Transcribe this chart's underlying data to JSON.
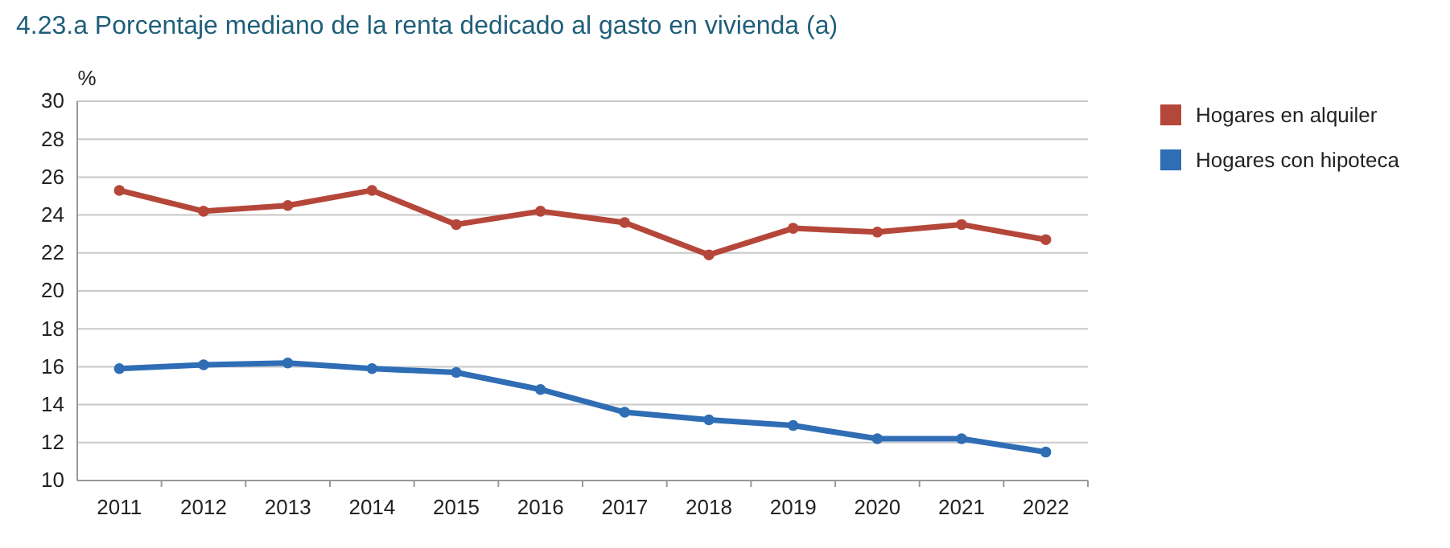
{
  "chart_data": {
    "type": "line",
    "title": "4.23.a  Porcentaje mediano de la renta dedicado al gasto en vivienda (a)",
    "ylabel": "%",
    "categories": [
      "2011",
      "2012",
      "2013",
      "2014",
      "2015",
      "2016",
      "2017",
      "2018",
      "2019",
      "2020",
      "2021",
      "2022"
    ],
    "series": [
      {
        "name": "Hogares en alquiler",
        "color": "#b5473a",
        "values": [
          25.3,
          24.2,
          24.5,
          25.3,
          23.5,
          24.2,
          23.6,
          21.9,
          23.3,
          23.1,
          23.5,
          22.7
        ]
      },
      {
        "name": "Hogares con hipoteca",
        "color": "#2f6db5",
        "values": [
          15.9,
          16.1,
          16.2,
          15.9,
          15.7,
          14.8,
          13.6,
          13.2,
          12.9,
          12.2,
          12.2,
          11.5
        ]
      }
    ],
    "ylim": [
      10,
      30
    ],
    "yticks": [
      10,
      12,
      14,
      16,
      18,
      20,
      22,
      24,
      26,
      28,
      30
    ],
    "grid": "y",
    "legend": "top right",
    "marker": "circle",
    "line_style": "solid"
  }
}
